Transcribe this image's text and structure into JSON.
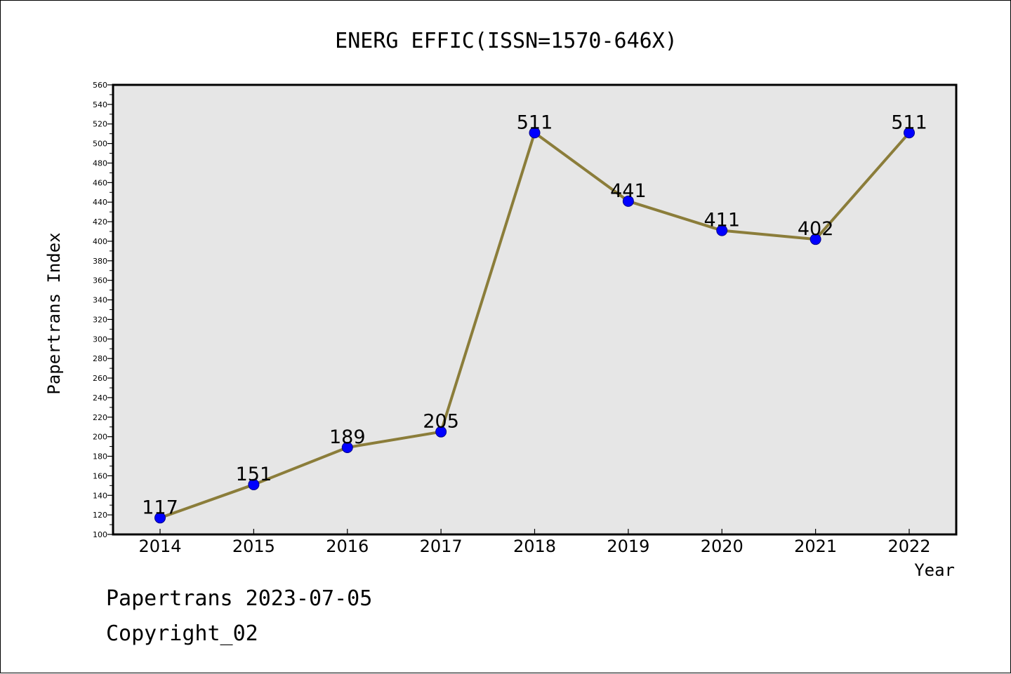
{
  "chart_data": {
    "type": "line",
    "title": "ENERG EFFIC(ISSN=1570-646X)",
    "xlabel": "Year",
    "ylabel": "Papertrans Index",
    "categories": [
      "2014",
      "2015",
      "2016",
      "2017",
      "2018",
      "2019",
      "2020",
      "2021",
      "2022"
    ],
    "series": [
      {
        "values": [
          117,
          151,
          189,
          205,
          511,
          441,
          411,
          402,
          511
        ]
      }
    ],
    "data_labels": [
      "117",
      "151",
      "189",
      "205",
      "511",
      "441",
      "411",
      "402",
      "511"
    ],
    "ylim": [
      100,
      560
    ],
    "yticks": [
      100,
      120,
      140,
      160,
      180,
      200,
      220,
      240,
      260,
      280,
      300,
      320,
      340,
      360,
      380,
      400,
      420,
      440,
      460,
      480,
      500,
      520,
      540,
      560
    ],
    "grid": false,
    "legend": "none",
    "colors": {
      "line": "#8b7d3a",
      "marker": "#0000ff",
      "plot_background": "#e6e6e6",
      "axis": "#000000"
    }
  },
  "footer": {
    "line1": "Papertrans 2023-07-05",
    "line2": "Copyright_02"
  }
}
